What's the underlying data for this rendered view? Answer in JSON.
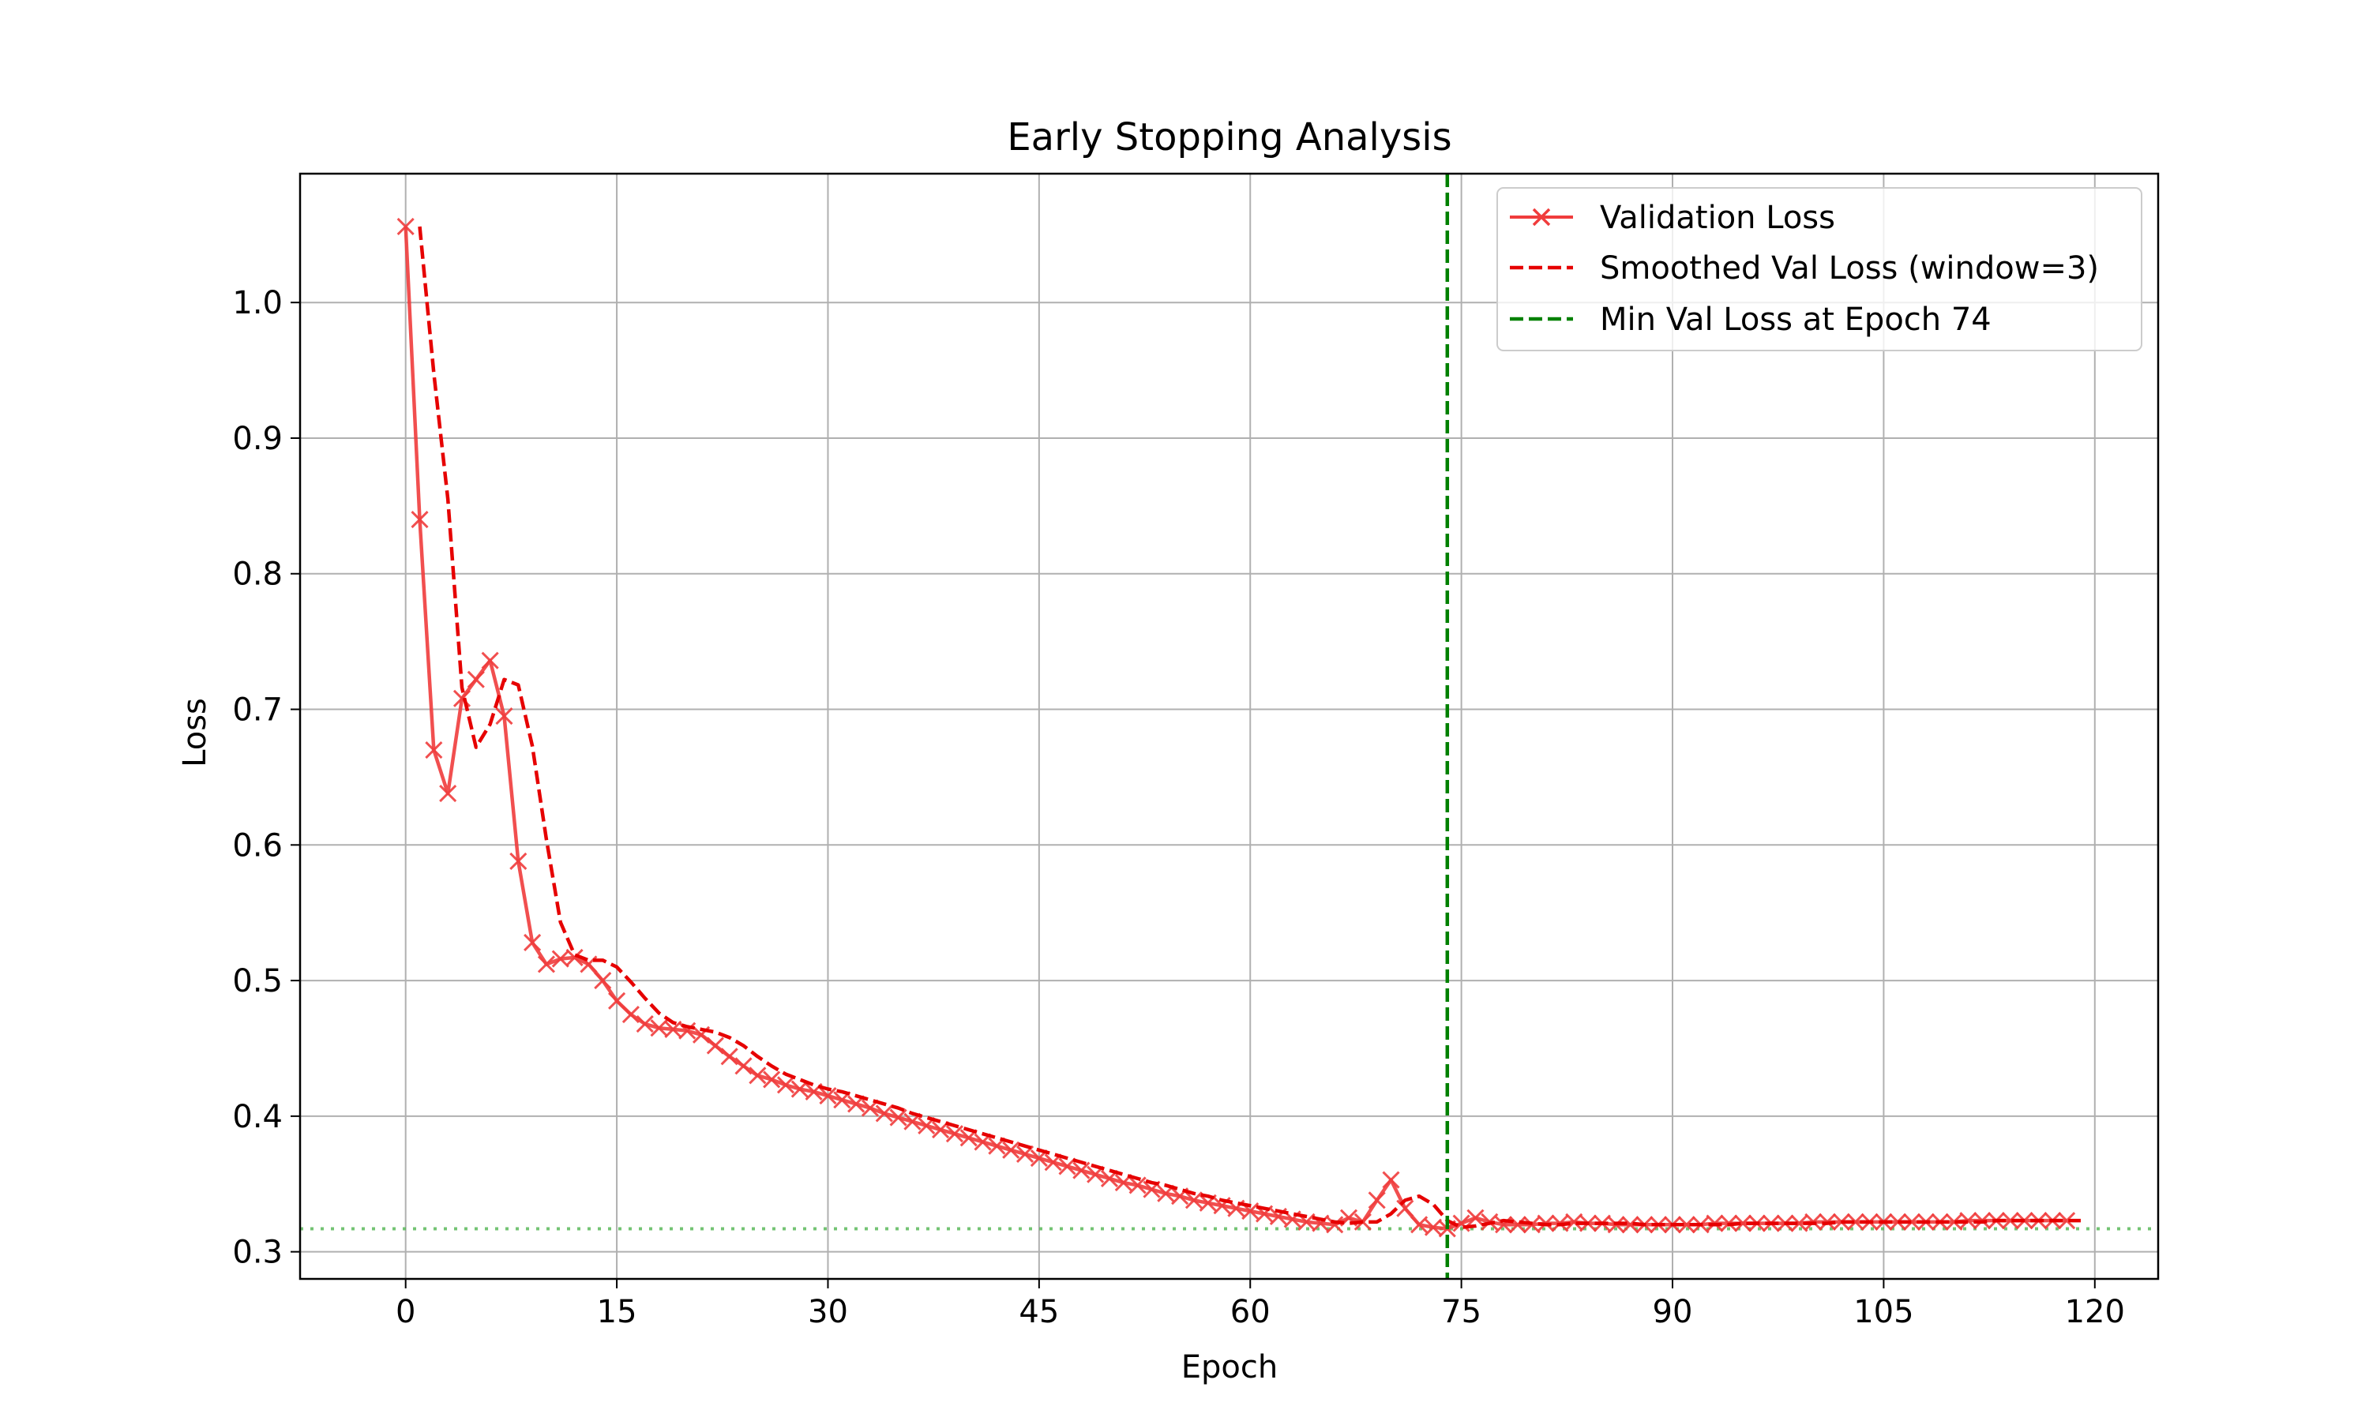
{
  "chart_data": {
    "type": "line",
    "title": "Early Stopping Analysis",
    "xlabel": "Epoch",
    "ylabel": "Loss",
    "xlim": [
      -7.5,
      124.5
    ],
    "ylim": [
      0.28,
      1.095
    ],
    "xticks": [
      0,
      15,
      30,
      45,
      60,
      75,
      90,
      105,
      120
    ],
    "yticks": [
      0.3,
      0.4,
      0.5,
      0.6,
      0.7,
      0.8,
      0.9,
      1.0
    ],
    "xtick_labels": [
      "0",
      "15",
      "30",
      "45",
      "60",
      "75",
      "90",
      "105",
      "120"
    ],
    "ytick_labels": [
      "0.3",
      "0.4",
      "0.5",
      "0.6",
      "0.7",
      "0.8",
      "0.9",
      "1.0"
    ],
    "grid": true,
    "legend_position": "top-right",
    "series": [
      {
        "name": "Validation Loss",
        "style": "solid-x-markers",
        "color": "#f03c3c",
        "values": [
          1.056,
          0.84,
          0.67,
          0.638,
          0.708,
          0.722,
          0.736,
          0.695,
          0.588,
          0.528,
          0.512,
          0.516,
          0.517,
          0.512,
          0.5,
          0.485,
          0.475,
          0.468,
          0.465,
          0.464,
          0.463,
          0.46,
          0.452,
          0.444,
          0.437,
          0.43,
          0.427,
          0.423,
          0.42,
          0.418,
          0.415,
          0.412,
          0.409,
          0.406,
          0.402,
          0.399,
          0.396,
          0.393,
          0.39,
          0.387,
          0.384,
          0.381,
          0.378,
          0.375,
          0.372,
          0.369,
          0.366,
          0.363,
          0.36,
          0.357,
          0.354,
          0.351,
          0.349,
          0.346,
          0.343,
          0.341,
          0.338,
          0.336,
          0.334,
          0.332,
          0.33,
          0.328,
          0.326,
          0.324,
          0.322,
          0.321,
          0.32,
          0.325,
          0.322,
          0.338,
          0.353,
          0.332,
          0.32,
          0.318,
          0.317,
          0.321,
          0.325,
          0.322,
          0.32,
          0.32,
          0.32,
          0.321,
          0.321,
          0.322,
          0.321,
          0.321,
          0.32,
          0.32,
          0.32,
          0.32,
          0.32,
          0.32,
          0.32,
          0.321,
          0.321,
          0.321,
          0.321,
          0.321,
          0.321,
          0.321,
          0.322,
          0.322,
          0.322,
          0.322,
          0.322,
          0.322,
          0.322,
          0.322,
          0.322,
          0.322,
          0.322,
          0.323,
          0.323,
          0.323,
          0.323,
          0.323,
          0.323,
          0.323,
          0.323
        ]
      },
      {
        "name": "Smoothed Val Loss (window=3)",
        "style": "dashed",
        "color": "#e60000",
        "values": [
          1.056,
          0.948,
          0.855,
          0.716,
          0.672,
          0.689,
          0.722,
          0.718,
          0.673,
          0.604,
          0.543,
          0.519,
          0.515,
          0.515,
          0.51,
          0.499,
          0.487,
          0.476,
          0.469,
          0.466,
          0.464,
          0.462,
          0.458,
          0.452,
          0.444,
          0.437,
          0.431,
          0.427,
          0.423,
          0.42,
          0.418,
          0.415,
          0.412,
          0.409,
          0.406,
          0.402,
          0.399,
          0.396,
          0.393,
          0.39,
          0.387,
          0.384,
          0.381,
          0.378,
          0.375,
          0.372,
          0.369,
          0.366,
          0.363,
          0.36,
          0.357,
          0.354,
          0.351,
          0.349,
          0.346,
          0.343,
          0.341,
          0.338,
          0.336,
          0.334,
          0.332,
          0.33,
          0.328,
          0.326,
          0.324,
          0.322,
          0.321,
          0.322,
          0.322,
          0.328,
          0.338,
          0.341,
          0.335,
          0.323,
          0.318,
          0.319,
          0.321,
          0.323,
          0.322,
          0.321,
          0.32,
          0.32,
          0.321,
          0.321,
          0.321,
          0.321,
          0.321,
          0.32,
          0.32,
          0.32,
          0.32,
          0.32,
          0.32,
          0.32,
          0.321,
          0.321,
          0.321,
          0.321,
          0.321,
          0.321,
          0.321,
          0.322,
          0.322,
          0.322,
          0.322,
          0.322,
          0.322,
          0.322,
          0.322,
          0.322,
          0.322,
          0.322,
          0.323,
          0.323,
          0.323,
          0.323,
          0.323,
          0.323,
          0.323
        ]
      }
    ],
    "vline": {
      "name": "Min Val Loss at Epoch 74",
      "x": 74,
      "color": "#008000",
      "style": "dashed"
    },
    "hline": {
      "y": 0.317,
      "color": "#5cb85c",
      "style": "dotted"
    }
  }
}
